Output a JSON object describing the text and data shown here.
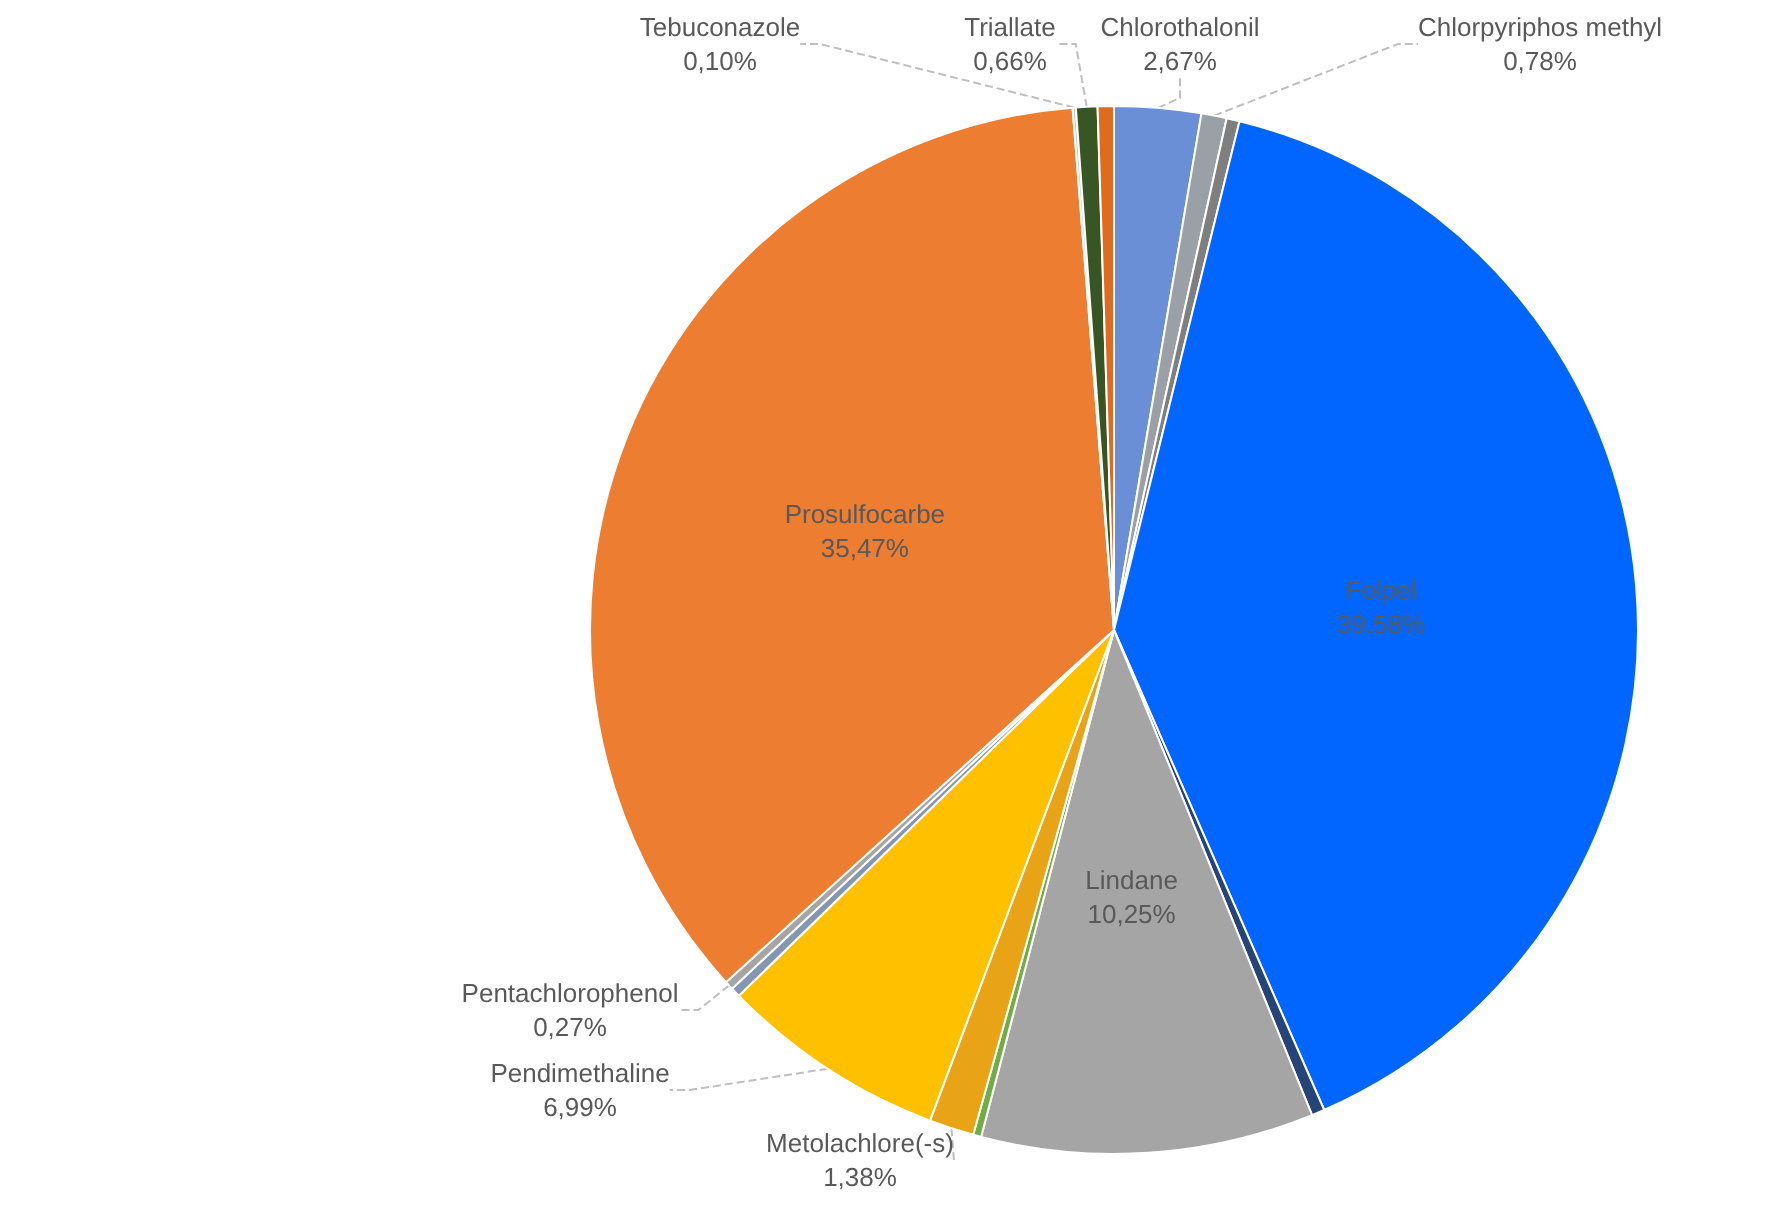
{
  "chart_data": {
    "type": "pie",
    "categories": [
      "Chlorothalonil",
      "Chlorpyriphos methyl",
      null,
      "Folpel",
      null,
      "Lindane",
      null,
      "Metolachlore(-s)",
      "Pendimethaline",
      null,
      "Pentachlorophenol",
      "Prosulfocarbe",
      "Tebuconazole",
      "Triallate",
      null
    ],
    "values": [
      2.67,
      0.78,
      0.4,
      39.58,
      0.4,
      10.25,
      0.25,
      1.38,
      6.99,
      0.3,
      0.27,
      35.47,
      0.1,
      0.66,
      0.5
    ],
    "value_labels": [
      "2,67%",
      "0,78%",
      null,
      "39,58%",
      null,
      "10,25%",
      null,
      "1,38%",
      "6,99%",
      null,
      "0,27%",
      "35,47%",
      "0,10%",
      "0,66%",
      null
    ],
    "colors": [
      "#6a8fd6",
      "#9aa0a6",
      "#7f7f7f",
      "#0066ff",
      "#264478",
      "#a5a5a5",
      "#70ad47",
      "#e8a317",
      "#ffc000",
      "#8497b0",
      "#a5a5a5",
      "#ed7d31",
      "#c9c9c9",
      "#375623",
      "#e06a20"
    ]
  }
}
